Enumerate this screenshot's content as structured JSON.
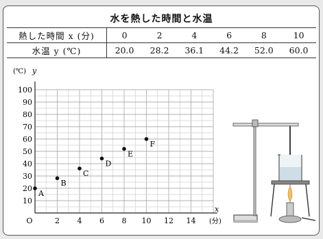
{
  "title": "水を熱した時間と水温",
  "table": {
    "row_headers": [
      "熱した時間 x (分)",
      "水温 y (℃)"
    ],
    "time": [
      "0",
      "2",
      "4",
      "6",
      "8",
      "10"
    ],
    "temp": [
      "20.0",
      "28.2",
      "36.1",
      "44.2",
      "52.0",
      "60.0"
    ]
  },
  "chart_data": {
    "type": "scatter",
    "points": [
      {
        "label": "A",
        "x": 0,
        "y": 20.0
      },
      {
        "label": "B",
        "x": 2,
        "y": 28.2
      },
      {
        "label": "C",
        "x": 4,
        "y": 36.1
      },
      {
        "label": "D",
        "x": 6,
        "y": 44.2
      },
      {
        "label": "E",
        "x": 8,
        "y": 52.0
      },
      {
        "label": "F",
        "x": 10,
        "y": 60.0
      }
    ],
    "xlim": [
      0,
      16
    ],
    "ylim": [
      0,
      100
    ],
    "xticks": [
      "2",
      "4",
      "6",
      "8",
      "10",
      "12",
      "14"
    ],
    "yticks": [
      "10",
      "20",
      "30",
      "40",
      "50",
      "60",
      "70",
      "80",
      "90",
      "100"
    ],
    "origin": "O",
    "xlabel": "x",
    "xunit": "(分)",
    "ylabel": "y",
    "yunit": "(℃)",
    "grid": true
  }
}
